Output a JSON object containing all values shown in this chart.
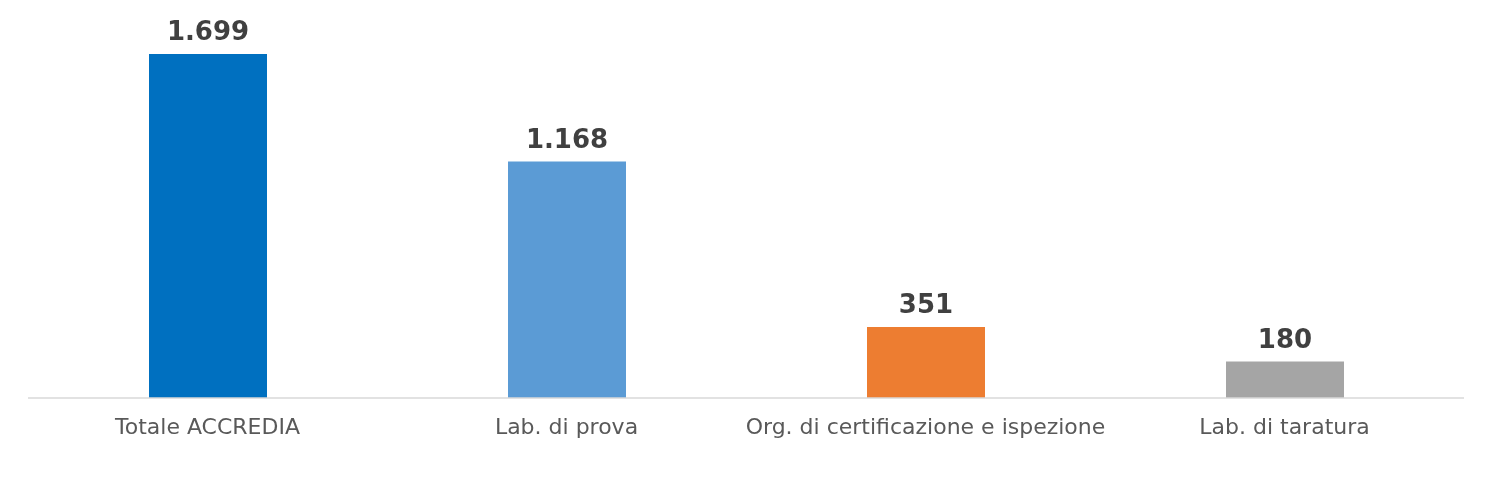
{
  "chart_data": {
    "type": "bar",
    "categories": [
      "Totale ACCREDIA",
      "Lab. di prova",
      "Org. di certificazione e ispezione",
      "Lab. di taratura"
    ],
    "values": [
      1699,
      1168,
      351,
      180
    ],
    "colors": [
      "#0070c0",
      "#5b9bd5",
      "#ed7d31",
      "#a5a5a5"
    ],
    "value_labels": [
      "1.699",
      "1.168",
      "351",
      "180"
    ],
    "grid": false,
    "legend": false,
    "tick_labels": "x"
  }
}
